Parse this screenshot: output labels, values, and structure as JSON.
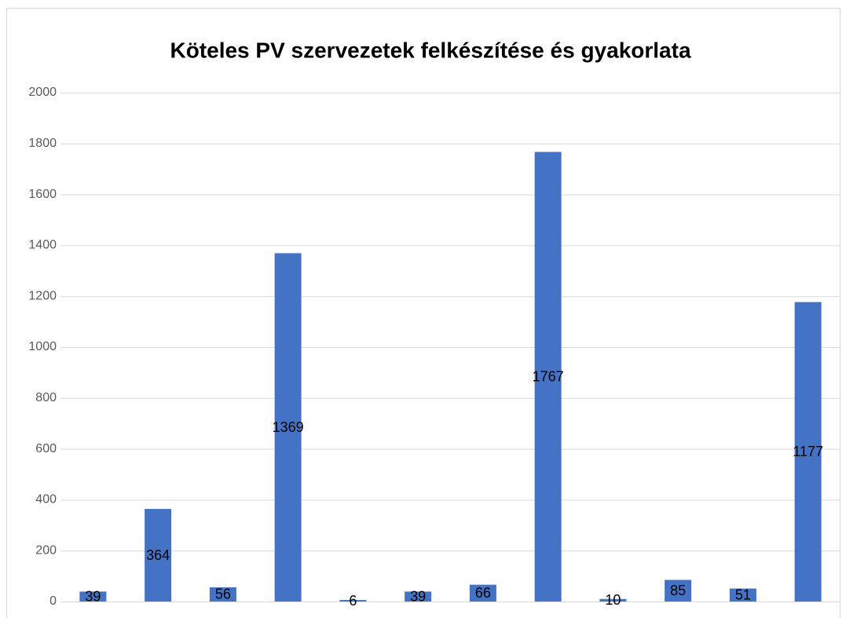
{
  "chart_data": {
    "type": "bar",
    "title": "Köteles PV szervezetek felkészítése és gyakorlata",
    "values": [
      39,
      364,
      56,
      1369,
      6,
      39,
      66,
      1767,
      10,
      85,
      51,
      1177
    ],
    "color": "#4472c4",
    "ylim": [
      0,
      2000
    ],
    "yticks": [
      0,
      200,
      400,
      600,
      800,
      1000,
      1200,
      1400,
      1600,
      1800,
      2000
    ],
    "grid": true,
    "data_labels": true
  }
}
